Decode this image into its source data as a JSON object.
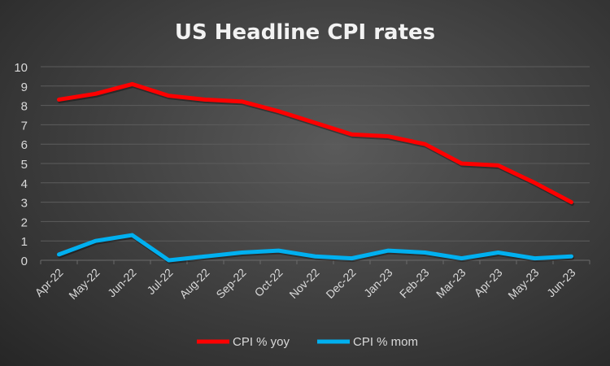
{
  "chart_data": {
    "type": "line",
    "title": "US Headline CPI rates",
    "xlabel": "",
    "ylabel": "",
    "categories": [
      "Apr-22",
      "May-22",
      "Jun-22",
      "Jul-22",
      "Aug-22",
      "Sep-22",
      "Oct-22",
      "Nov-22",
      "Dec-22",
      "Jan-23",
      "Feb-23",
      "Mar-23",
      "Apr-23",
      "May-23",
      "Jun-23"
    ],
    "ylim": [
      0,
      10
    ],
    "yticks": [
      "0",
      "1",
      "2",
      "3",
      "4",
      "5",
      "6",
      "7",
      "8",
      "9",
      "10"
    ],
    "grid": true,
    "legend_position": "bottom",
    "series": [
      {
        "name": "CPI % yoy",
        "color": "#ff0000",
        "values": [
          8.3,
          8.6,
          9.1,
          8.5,
          8.3,
          8.2,
          7.7,
          7.1,
          6.5,
          6.4,
          6.0,
          5.0,
          4.9,
          4.0,
          3.0
        ]
      },
      {
        "name": "CPI % mom",
        "color": "#00b0f0",
        "values": [
          0.3,
          1.0,
          1.3,
          0.0,
          0.2,
          0.4,
          0.5,
          0.2,
          0.1,
          0.5,
          0.4,
          0.1,
          0.4,
          0.1,
          0.2
        ]
      }
    ]
  }
}
